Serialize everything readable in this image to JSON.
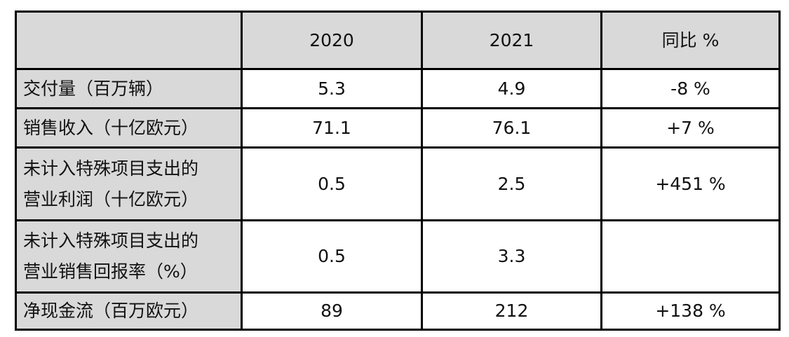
{
  "page": {
    "background": "#ffffff"
  },
  "table": {
    "style": {
      "header_bg": "#d9d9d9",
      "label_column_bg": "#d9d9d9",
      "data_cell_bg": "#ffffff",
      "border_color": "#000000",
      "text_color": "#111111"
    },
    "header": {
      "col0": "",
      "col1": "2020",
      "col2": "2021",
      "col3": "同比 %"
    },
    "rows": [
      {
        "label": "交付量（百万辆）",
        "y2020": "5.3",
        "y2021": "4.9",
        "yoy": "-8 %"
      },
      {
        "label": "销售收入（十亿欧元）",
        "y2020": "71.1",
        "y2021": "76.1",
        "yoy": "+7 %"
      },
      {
        "label": "未计入特殊项目支出的营业利润（十亿欧元）",
        "y2020": "0.5",
        "y2021": "2.5",
        "yoy": "+451 %"
      },
      {
        "label": "未计入特殊项目支出的营业销售回报率（%）",
        "y2020": "0.5",
        "y2021": "3.3",
        "yoy": ""
      },
      {
        "label": "净现金流（百万欧元）",
        "y2020": "89",
        "y2021": "212",
        "yoy": "+138 %"
      }
    ]
  },
  "chart_data": {
    "type": "table",
    "columns": [
      "",
      "2020",
      "2021",
      "同比 %"
    ],
    "rows": [
      [
        "交付量（百万辆）",
        "5.3",
        "4.9",
        "-8 %"
      ],
      [
        "销售收入（十亿欧元）",
        "71.1",
        "76.1",
        "+7 %"
      ],
      [
        "未计入特殊项目支出的营业利润（十亿欧元）",
        "0.5",
        "2.5",
        "+451 %"
      ],
      [
        "未计入特殊项目支出的营业销售回报率（%）",
        "0.5",
        "3.3",
        ""
      ],
      [
        "净现金流（百万欧元）",
        "89",
        "212",
        "+138 %"
      ]
    ]
  }
}
